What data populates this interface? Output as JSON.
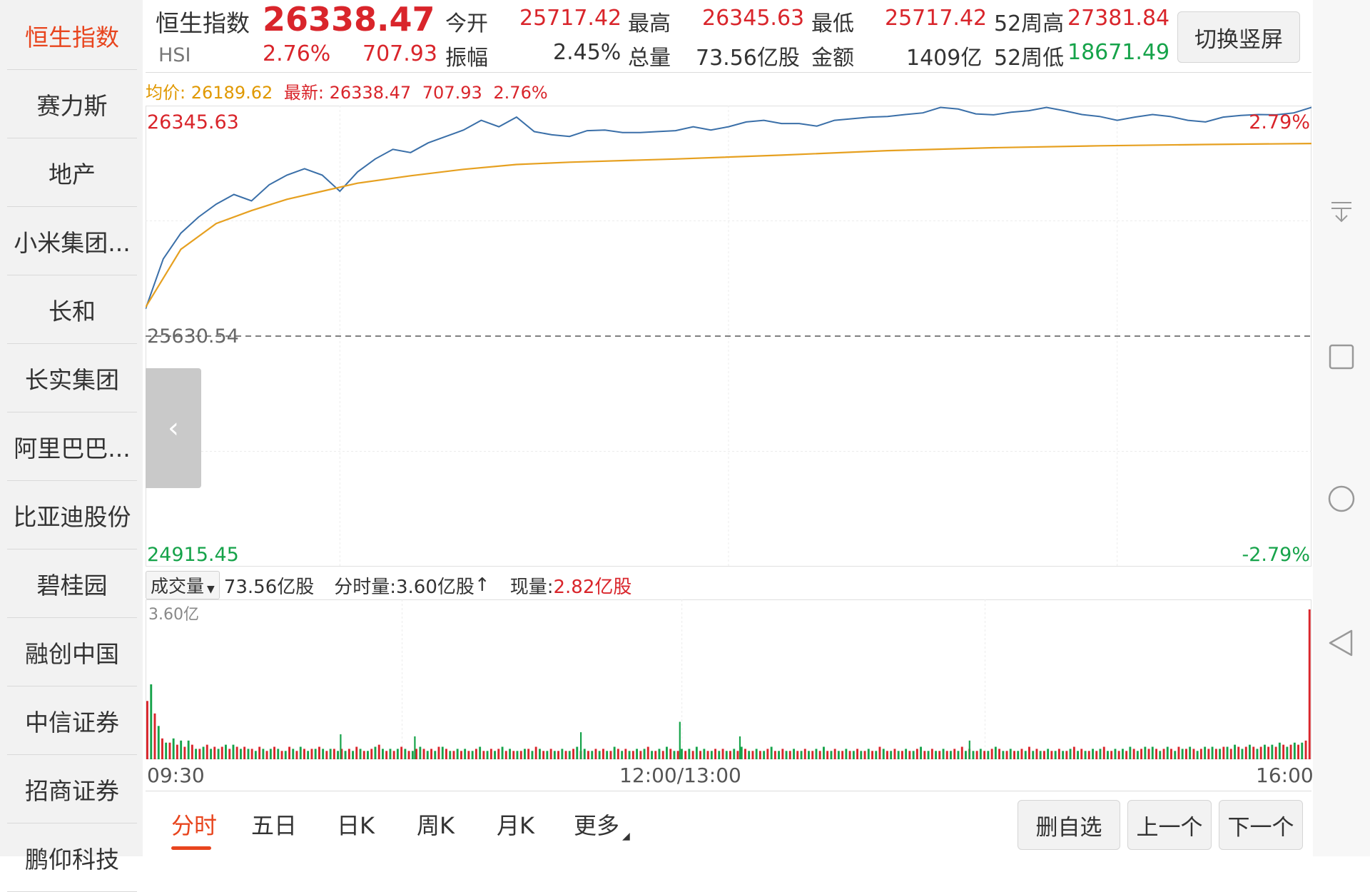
{
  "sidebar": {
    "items": [
      {
        "label": "恒生指数",
        "active": true
      },
      {
        "label": "赛力斯"
      },
      {
        "label": "地产"
      },
      {
        "label": "小米集团..."
      },
      {
        "label": "长和"
      },
      {
        "label": "长实集团"
      },
      {
        "label": "阿里巴巴..."
      },
      {
        "label": "比亚迪股份"
      },
      {
        "label": "碧桂园"
      },
      {
        "label": "融创中国"
      },
      {
        "label": "中信证券"
      },
      {
        "label": "招商证券"
      },
      {
        "label": "鹏仰科技"
      }
    ]
  },
  "header": {
    "name": "恒生指数",
    "code": "HSI",
    "price": "26338.47",
    "change_pct": "2.76%",
    "change": "707.93",
    "open_label": "今开",
    "open": "25717.42",
    "high_label": "最高",
    "high": "26345.63",
    "low_label": "最低",
    "low": "25717.42",
    "w52_high_label": "52周高",
    "w52_high": "27381.84",
    "amplitude_label": "振幅",
    "amplitude": "2.45%",
    "volume_label": "总量",
    "volume": "73.56亿股",
    "amount_label": "金额",
    "amount": "1409亿",
    "w52_low_label": "52周低",
    "w52_low": "18671.49",
    "switch_button": "切换竖屏"
  },
  "price_legend": {
    "avg_label": "均价:",
    "avg": "26189.62",
    "latest_label": "最新:",
    "latest": "26338.47",
    "change": "707.93",
    "change_pct": "2.76%"
  },
  "volume_legend": {
    "selector": "成交量",
    "total": "73.56亿股",
    "minute_label": "分时量:",
    "minute": "3.60亿股",
    "minute_arrow": "↑",
    "current_label": "现量:",
    "current": "2.82亿股"
  },
  "time_axis": {
    "start": "09:30",
    "mid": "12:00/13:00",
    "end": "16:00"
  },
  "tabs": [
    {
      "label": "分时",
      "active": true
    },
    {
      "label": "五日"
    },
    {
      "label": "日K"
    },
    {
      "label": "周K"
    },
    {
      "label": "月K"
    },
    {
      "label": "更多"
    }
  ],
  "buttons": {
    "remove_watch": "删自选",
    "prev": "上一个",
    "next": "下一个"
  },
  "colors": {
    "up": "#d9252b",
    "down": "#16a34a",
    "accent": "#e8451e",
    "price_line": "#3a6fa8",
    "avg_line": "#e6a020"
  },
  "icons": {
    "collapse_handle": "chevron-left-icon",
    "sys_nav": [
      "collapse-down-icon",
      "square-icon",
      "circle-icon",
      "back-triangle-icon"
    ]
  },
  "chart_data": [
    {
      "type": "line",
      "title": "",
      "y_labels": {
        "max": "26345.63",
        "base": "25630.54",
        "min": "24915.45",
        "max_pct": "2.79%",
        "min_pct": "-2.79%"
      },
      "ylim": [
        24915.45,
        26345.63
      ],
      "base_value": 25630.54,
      "x_range": [
        0,
        330
      ],
      "grid": true,
      "series": [
        {
          "role": "price",
          "x": [
            0,
            5,
            10,
            15,
            20,
            25,
            30,
            35,
            40,
            45,
            50,
            55,
            60,
            65,
            70,
            75,
            80,
            85,
            90,
            95,
            100,
            105,
            110,
            115,
            120,
            125,
            130,
            135,
            140,
            145,
            150,
            155,
            160,
            165,
            170,
            175,
            180,
            185,
            190,
            195,
            200,
            205,
            210,
            215,
            220,
            225,
            230,
            235,
            240,
            245,
            250,
            255,
            260,
            265,
            270,
            275,
            280,
            285,
            290,
            295,
            300,
            305,
            310,
            315,
            320,
            325,
            330
          ],
          "y": [
            25715,
            25870,
            25950,
            26000,
            26040,
            26070,
            26050,
            26100,
            26130,
            26150,
            26130,
            26080,
            26140,
            26180,
            26210,
            26200,
            26230,
            26250,
            26270,
            26300,
            26280,
            26310,
            26265,
            26255,
            26250,
            26268,
            26270,
            26262,
            26262,
            26265,
            26268,
            26280,
            26270,
            26280,
            26295,
            26300,
            26290,
            26290,
            26282,
            26300,
            26305,
            26310,
            26312,
            26318,
            26323,
            26340,
            26335,
            26320,
            26317,
            26325,
            26330,
            26340,
            26330,
            26318,
            26312,
            26300,
            26310,
            26318,
            26312,
            26300,
            26295,
            26310,
            26315,
            26318,
            26317,
            26323,
            26340
          ]
        },
        {
          "role": "average",
          "x": [
            0,
            10,
            20,
            30,
            40,
            50,
            60,
            75,
            90,
            105,
            120,
            150,
            180,
            210,
            240,
            270,
            300,
            330
          ],
          "y": [
            25720,
            25900,
            25980,
            26020,
            26055,
            26080,
            26105,
            26128,
            26148,
            26163,
            26170,
            26180,
            26192,
            26206,
            26215,
            26221,
            26225,
            26228
          ]
        }
      ]
    },
    {
      "type": "bar",
      "title": "",
      "y_label": "3.60亿",
      "ylim": [
        0,
        3.6
      ],
      "x_range": [
        0,
        330
      ],
      "series": [
        {
          "name": "成交量",
          "values": [
            1.4,
            1.8,
            1.1,
            0.8,
            0.5,
            0.4,
            0.4,
            0.5,
            0.35,
            0.45,
            0.3,
            0.45,
            0.35,
            0.25,
            0.25,
            0.3,
            0.35,
            0.25,
            0.3,
            0.25,
            0.3,
            0.35,
            0.25,
            0.35,
            0.3,
            0.25,
            0.3,
            0.25,
            0.25,
            0.2,
            0.3,
            0.25,
            0.2,
            0.25,
            0.3,
            0.25,
            0.2,
            0.2,
            0.3,
            0.25,
            0.2,
            0.3,
            0.25,
            0.2,
            0.25,
            0.25,
            0.3,
            0.25,
            0.2,
            0.25,
            0.25,
            0.2,
            0.25,
            0.2,
            0.25,
            0.2,
            0.3,
            0.25,
            0.2,
            0.2,
            0.25,
            0.3,
            0.35,
            0.25,
            0.2,
            0.25,
            0.2,
            0.25,
            0.3,
            0.25,
            0.2,
            0.2,
            0.25,
            0.3,
            0.25,
            0.2,
            0.25,
            0.2,
            0.3,
            0.3,
            0.25,
            0.2,
            0.2,
            0.25,
            0.2,
            0.25,
            0.2,
            0.2,
            0.25,
            0.3,
            0.2,
            0.2,
            0.25,
            0.2,
            0.25,
            0.3,
            0.2,
            0.25,
            0.2,
            0.2,
            0.2,
            0.25,
            0.25,
            0.2,
            0.3,
            0.25,
            0.2,
            0.2,
            0.25,
            0.2,
            0.2,
            0.25,
            0.2,
            0.2,
            0.25,
            0.3,
            0.2,
            0.25,
            0.2,
            0.2,
            0.25,
            0.2,
            0.25,
            0.2,
            0.2,
            0.3,
            0.25,
            0.2,
            0.25,
            0.2,
            0.2,
            0.25,
            0.2,
            0.25,
            0.3,
            0.2,
            0.2,
            0.25,
            0.2,
            0.3,
            0.25,
            0.2,
            0.2,
            0.25,
            0.2,
            0.25,
            0.2,
            0.3,
            0.2,
            0.25,
            0.2,
            0.2,
            0.25,
            0.2,
            0.25,
            0.2,
            0.2,
            0.25,
            0.2,
            0.3,
            0.25,
            0.2,
            0.2,
            0.25,
            0.2,
            0.2,
            0.25,
            0.3,
            0.2,
            0.2,
            0.25,
            0.2,
            0.2,
            0.25,
            0.2,
            0.2,
            0.25,
            0.2,
            0.2,
            0.25,
            0.2,
            0.3,
            0.2,
            0.2,
            0.25,
            0.2,
            0.2,
            0.25,
            0.2,
            0.2,
            0.25,
            0.2,
            0.2,
            0.25,
            0.2,
            0.2,
            0.3,
            0.25,
            0.2,
            0.2,
            0.25,
            0.2,
            0.2,
            0.25,
            0.2,
            0.2,
            0.25,
            0.3,
            0.2,
            0.2,
            0.25,
            0.2,
            0.2,
            0.25,
            0.2,
            0.2,
            0.25,
            0.2,
            0.3,
            0.2,
            0.25,
            0.2,
            0.2,
            0.25,
            0.2,
            0.2,
            0.25,
            0.3,
            0.25,
            0.2,
            0.2,
            0.25,
            0.2,
            0.2,
            0.25,
            0.2,
            0.3,
            0.2,
            0.25,
            0.2,
            0.2,
            0.25,
            0.2,
            0.2,
            0.25,
            0.2,
            0.2,
            0.25,
            0.3,
            0.2,
            0.25,
            0.2,
            0.2,
            0.25,
            0.2,
            0.25,
            0.3,
            0.2,
            0.2,
            0.25,
            0.2,
            0.25,
            0.2,
            0.3,
            0.25,
            0.2,
            0.25,
            0.3,
            0.25,
            0.3,
            0.25,
            0.2,
            0.25,
            0.3,
            0.25,
            0.2,
            0.3,
            0.25,
            0.25,
            0.3,
            0.25,
            0.2,
            0.25,
            0.3,
            0.25,
            0.3,
            0.25,
            0.25,
            0.3,
            0.3,
            0.25,
            0.35,
            0.3,
            0.25,
            0.3,
            0.35,
            0.3,
            0.25,
            0.3,
            0.35,
            0.3,
            0.35,
            0.3,
            0.4,
            0.35,
            0.3,
            0.35,
            0.4,
            0.35,
            0.4,
            0.45,
            3.6
          ],
          "spikes": [
            {
              "x": 55,
              "v": 0.6
            },
            {
              "x": 76,
              "v": 0.55
            },
            {
              "x": 123,
              "v": 0.65
            },
            {
              "x": 151,
              "v": 0.9
            },
            {
              "x": 168,
              "v": 0.55
            },
            {
              "x": 233,
              "v": 0.45
            }
          ],
          "up_down": "alternating"
        }
      ]
    }
  ]
}
